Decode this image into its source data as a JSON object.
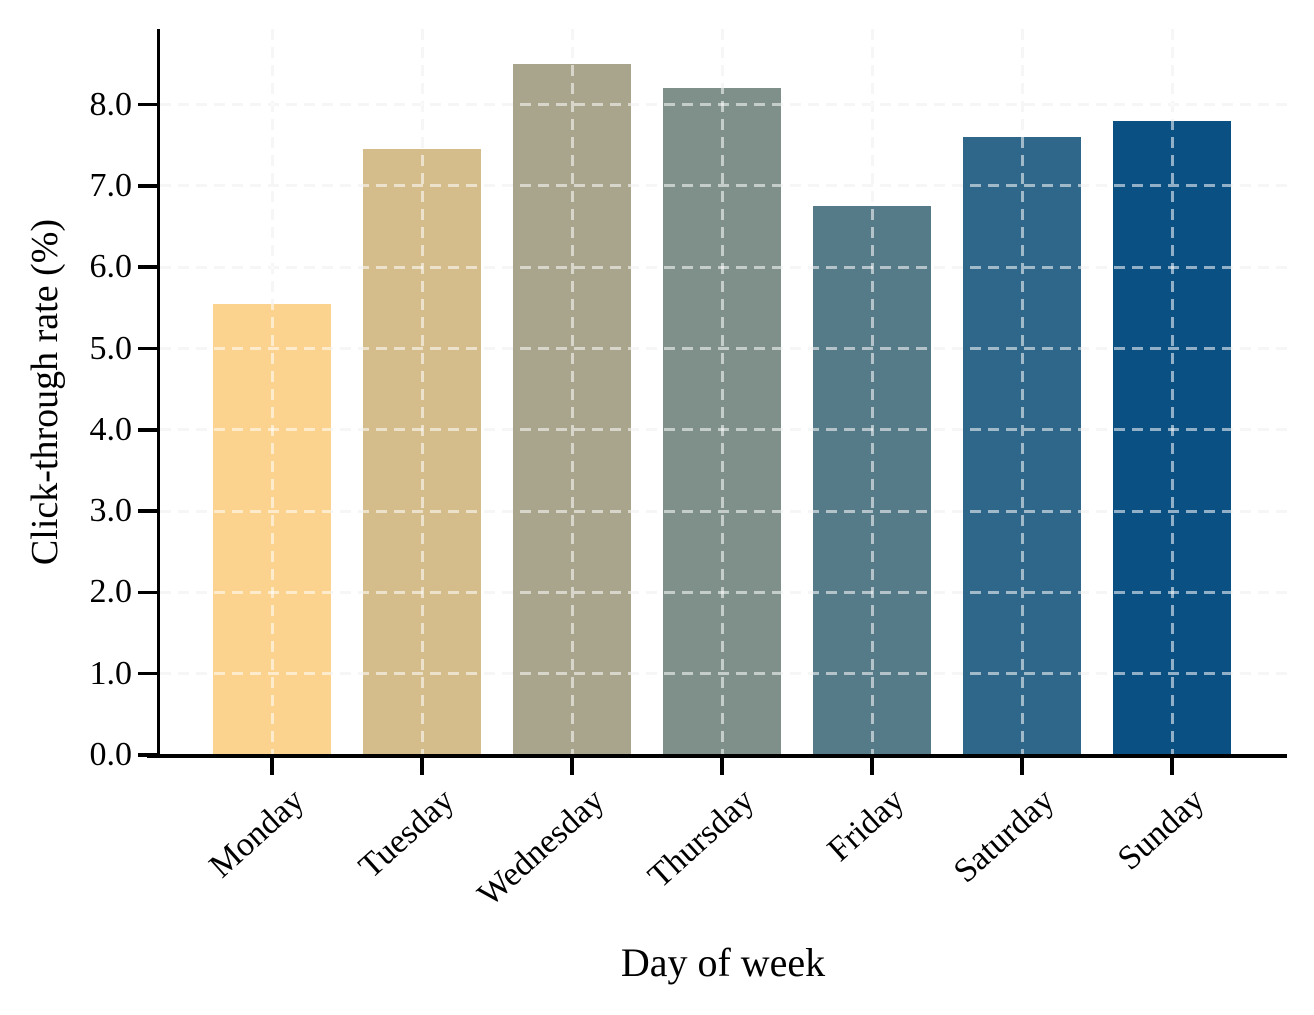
{
  "chart_data": {
    "type": "bar",
    "title": "",
    "xlabel": "Day of week",
    "ylabel": "Click-through rate (%)",
    "categories": [
      "Monday",
      "Tuesday",
      "Wednesday",
      "Thursday",
      "Friday",
      "Saturday",
      "Sunday"
    ],
    "values": [
      5.55,
      7.45,
      8.5,
      8.2,
      6.75,
      7.6,
      7.8
    ],
    "bar_colors": [
      "#FCD28F",
      "#D4BC8B",
      "#A8A58C",
      "#7F908A",
      "#567B88",
      "#2F678A",
      "#0B5083"
    ],
    "ylim": [
      0,
      8.93
    ],
    "ytick_labels": [
      "0.0",
      "1.0",
      "2.0",
      "3.0",
      "4.0",
      "5.0",
      "6.0",
      "7.0",
      "8.0"
    ],
    "ytick_values": [
      0,
      1,
      2,
      3,
      4,
      5,
      6,
      7,
      8
    ],
    "grid": "dashed gridlines on both axes, drawn light gray under bars and translucent white over bars",
    "legend": "none",
    "xtick_rotation": 45,
    "spine_color": "#000000",
    "background_color": "#ffffff"
  }
}
